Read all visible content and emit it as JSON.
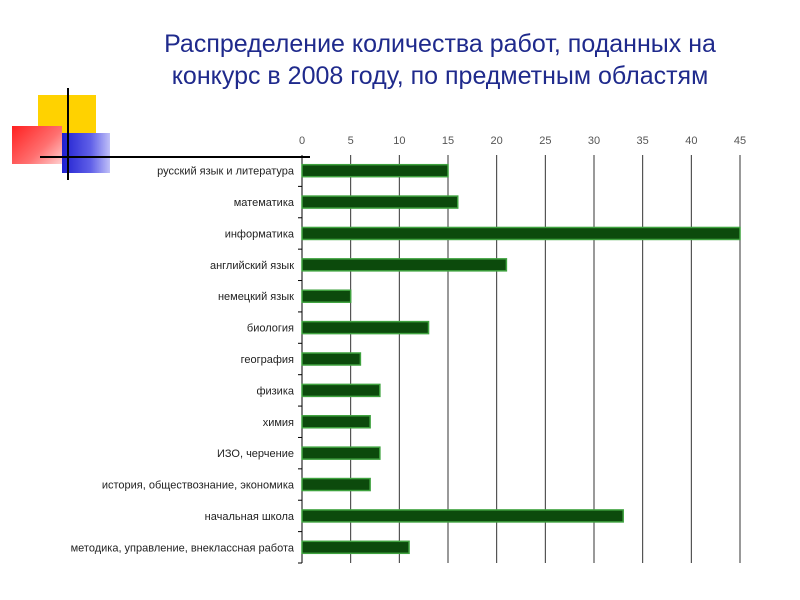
{
  "slide": {
    "title_line1": "Распределение количества работ, поданных на",
    "title_line2": "конкурс в 2008 году, по предметным областям"
  },
  "colors": {
    "title": "#1f2a8c",
    "bar_fill": "#0c4a0c",
    "bar_stroke": "#3fa23f",
    "grid": "#333333"
  },
  "chart_data": {
    "type": "bar",
    "orientation": "horizontal",
    "title": "Распределение количества работ, поданных на конкурс в 2008 году, по предметным областям",
    "categories": [
      "русский язык и литература",
      "математика",
      "информатика",
      "английский язык",
      "немецкий язык",
      "биология",
      "география",
      "физика",
      "химия",
      "ИЗО, черчение",
      "история, обществознание, экономика",
      "начальная школа",
      "методика, управление, внеклассная работа"
    ],
    "values": [
      15,
      16,
      45,
      21,
      5,
      13,
      6,
      8,
      7,
      8,
      7,
      33,
      11
    ],
    "xlim": [
      0,
      45
    ],
    "xticks": [
      0,
      5,
      10,
      15,
      20,
      25,
      30,
      35,
      40,
      45
    ],
    "xaxis_position": "top",
    "grid": true,
    "legend": "none"
  }
}
